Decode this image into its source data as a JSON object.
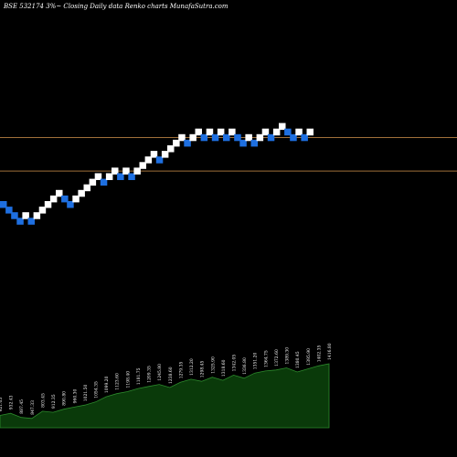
{
  "header": {
    "title": "BSE 532174  3%~  Closing Daily data  Renko  charts MunafaSutra.com"
  },
  "colors": {
    "up_brick": "#ffffff",
    "down_brick": "#1e6fe0",
    "reference_line": "#a0703a",
    "volume_fill": "#0a3a0a",
    "volume_line": "#2c8a2c"
  },
  "chart_data": {
    "type": "renko",
    "brick_columns": 59,
    "bricks": [
      {
        "level": 0,
        "dir": "down"
      },
      {
        "level": -1,
        "dir": "down"
      },
      {
        "level": -2,
        "dir": "down"
      },
      {
        "level": -3,
        "dir": "down"
      },
      {
        "level": -2,
        "dir": "up"
      },
      {
        "level": -3,
        "dir": "down"
      },
      {
        "level": -2,
        "dir": "up"
      },
      {
        "level": -1,
        "dir": "up"
      },
      {
        "level": 0,
        "dir": "up"
      },
      {
        "level": 1,
        "dir": "up"
      },
      {
        "level": 2,
        "dir": "up"
      },
      {
        "level": 1,
        "dir": "down"
      },
      {
        "level": 0,
        "dir": "down"
      },
      {
        "level": 1,
        "dir": "up"
      },
      {
        "level": 2,
        "dir": "up"
      },
      {
        "level": 3,
        "dir": "up"
      },
      {
        "level": 4,
        "dir": "up"
      },
      {
        "level": 5,
        "dir": "up"
      },
      {
        "level": 4,
        "dir": "down"
      },
      {
        "level": 5,
        "dir": "up"
      },
      {
        "level": 6,
        "dir": "up"
      },
      {
        "level": 5,
        "dir": "down"
      },
      {
        "level": 6,
        "dir": "up"
      },
      {
        "level": 5,
        "dir": "down"
      },
      {
        "level": 6,
        "dir": "up"
      },
      {
        "level": 7,
        "dir": "up"
      },
      {
        "level": 8,
        "dir": "up"
      },
      {
        "level": 9,
        "dir": "up"
      },
      {
        "level": 8,
        "dir": "down"
      },
      {
        "level": 9,
        "dir": "up"
      },
      {
        "level": 10,
        "dir": "up"
      },
      {
        "level": 11,
        "dir": "up"
      },
      {
        "level": 12,
        "dir": "up"
      },
      {
        "level": 11,
        "dir": "down"
      },
      {
        "level": 12,
        "dir": "up"
      },
      {
        "level": 13,
        "dir": "up"
      },
      {
        "level": 12,
        "dir": "down"
      },
      {
        "level": 13,
        "dir": "up"
      },
      {
        "level": 12,
        "dir": "down"
      },
      {
        "level": 13,
        "dir": "up"
      },
      {
        "level": 12,
        "dir": "down"
      },
      {
        "level": 13,
        "dir": "up"
      },
      {
        "level": 12,
        "dir": "down"
      },
      {
        "level": 11,
        "dir": "down"
      },
      {
        "level": 12,
        "dir": "up"
      },
      {
        "level": 11,
        "dir": "down"
      },
      {
        "level": 12,
        "dir": "up"
      },
      {
        "level": 13,
        "dir": "up"
      },
      {
        "level": 12,
        "dir": "down"
      },
      {
        "level": 13,
        "dir": "up"
      },
      {
        "level": 14,
        "dir": "up"
      },
      {
        "level": 13,
        "dir": "down"
      },
      {
        "level": 12,
        "dir": "down"
      },
      {
        "level": 13,
        "dir": "up"
      },
      {
        "level": 12,
        "dir": "down"
      },
      {
        "level": 13,
        "dir": "up"
      }
    ],
    "reference_lines": [
      {
        "level": 12
      },
      {
        "level": 6
      }
    ],
    "volume": [
      {
        "label": "921.05",
        "value": 12
      },
      {
        "label": "932.43",
        "value": 14
      },
      {
        "label": "887.45",
        "value": 10
      },
      {
        "label": "847.33",
        "value": 9
      },
      {
        "label": "803.45",
        "value": 16
      },
      {
        "label": "912.35",
        "value": 15
      },
      {
        "label": "890.80",
        "value": 18
      },
      {
        "label": "960.30",
        "value": 20
      },
      {
        "label": "1021.50",
        "value": 22
      },
      {
        "label": "1054.35",
        "value": 25
      },
      {
        "label": "1099.20",
        "value": 30
      },
      {
        "label": "1123.60",
        "value": 33
      },
      {
        "label": "1198.40",
        "value": 35
      },
      {
        "label": "1181.75",
        "value": 38
      },
      {
        "label": "1209.35",
        "value": 40
      },
      {
        "label": "1245.80",
        "value": 42
      },
      {
        "label": "1238.60",
        "value": 39
      },
      {
        "label": "1279.35",
        "value": 44
      },
      {
        "label": "1312.20",
        "value": 47
      },
      {
        "label": "1298.45",
        "value": 45
      },
      {
        "label": "1325.90",
        "value": 49
      },
      {
        "label": "1318.60",
        "value": 46
      },
      {
        "label": "1342.05",
        "value": 51
      },
      {
        "label": "1336.80",
        "value": 48
      },
      {
        "label": "1351.20",
        "value": 53
      },
      {
        "label": "1364.75",
        "value": 55
      },
      {
        "label": "1372.60",
        "value": 56
      },
      {
        "label": "1389.30",
        "value": 58
      },
      {
        "label": "1380.45",
        "value": 54
      },
      {
        "label": "1395.90",
        "value": 57
      },
      {
        "label": "1402.35",
        "value": 60
      },
      {
        "label": "1416.80",
        "value": 62
      }
    ]
  }
}
